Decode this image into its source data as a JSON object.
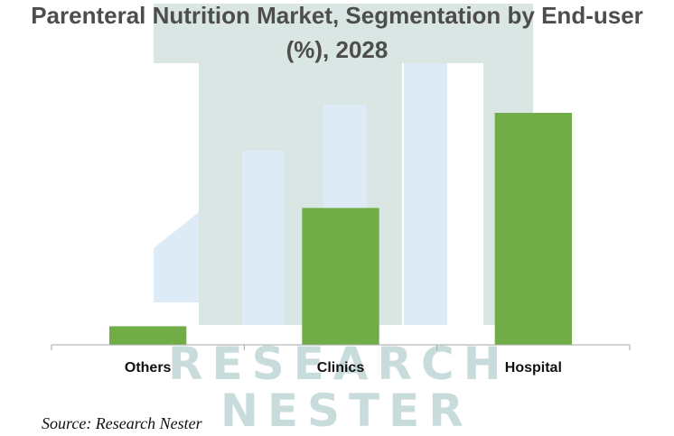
{
  "chart_data": {
    "type": "bar",
    "title": "Parenteral Nutrition Market, Segmentation by End-user (%), 2028",
    "title_lines": [
      "Parenteral Nutrition Market, Segmentation by End-user",
      "(%), 2028"
    ],
    "categories": [
      "Others",
      "Clinics",
      "Hospital"
    ],
    "values": [
      8,
      59,
      100
    ],
    "xlabel": "",
    "ylabel": "",
    "ylim": [
      0,
      100
    ],
    "grid": false,
    "legend": "none",
    "bar_color": "#70ad47",
    "axis_color": "#a6a6a6"
  },
  "source": "Source: Research Nester",
  "watermark": {
    "lines": [
      "RESEARCH",
      "NESTER"
    ],
    "colors": {
      "frame": "#d9e6e3",
      "bars": "#dcebf5",
      "text": "#c9dcdc"
    }
  }
}
